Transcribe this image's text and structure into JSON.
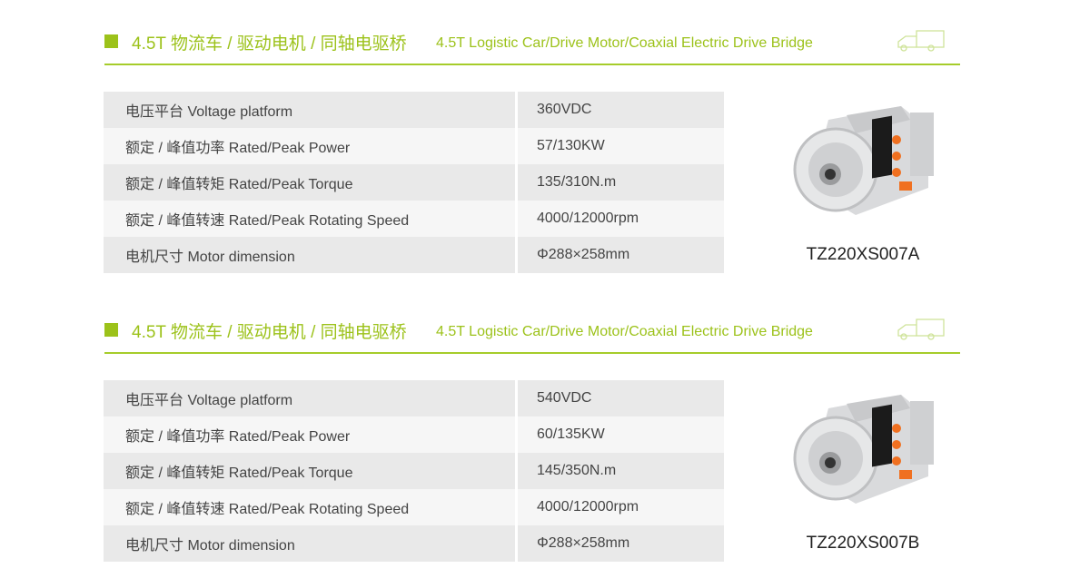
{
  "accent_color": "#9cc21a",
  "sections": [
    {
      "title_zh": "4.5T 物流车 / 驱动电机 / 同轴电驱桥",
      "title_en": "4.5T Logistic Car/Drive Motor/Coaxial Electric Drive Bridge",
      "icon": "truck-icon",
      "rows": [
        [
          "电压平台 Voltage platform",
          "360VDC"
        ],
        [
          "额定 / 峰值功率 Rated/Peak Power",
          "57/130KW"
        ],
        [
          "额定 / 峰值转矩 Rated/Peak Torque",
          "135/310N.m"
        ],
        [
          "额定 / 峰值转速 Rated/Peak Rotating Speed",
          "4000/12000rpm"
        ],
        [
          "电机尺寸 Motor dimension",
          "Φ288×258mm"
        ]
      ],
      "model": "TZ220XS007A"
    },
    {
      "title_zh": "4.5T 物流车 / 驱动电机 / 同轴电驱桥",
      "title_en": "4.5T Logistic Car/Drive Motor/Coaxial Electric Drive Bridge",
      "icon": "truck-icon",
      "rows": [
        [
          "电压平台 Voltage platform",
          "540VDC"
        ],
        [
          "额定 / 峰值功率 Rated/Peak Power",
          "60/135KW"
        ],
        [
          "额定 / 峰值转矩 Rated/Peak Torque",
          "145/350N.m"
        ],
        [
          "额定 / 峰值转速 Rated/Peak Rotating Speed",
          "4000/12000rpm"
        ],
        [
          "电机尺寸 Motor dimension",
          "Φ288×258mm"
        ]
      ],
      "model": "TZ220XS007B"
    }
  ]
}
